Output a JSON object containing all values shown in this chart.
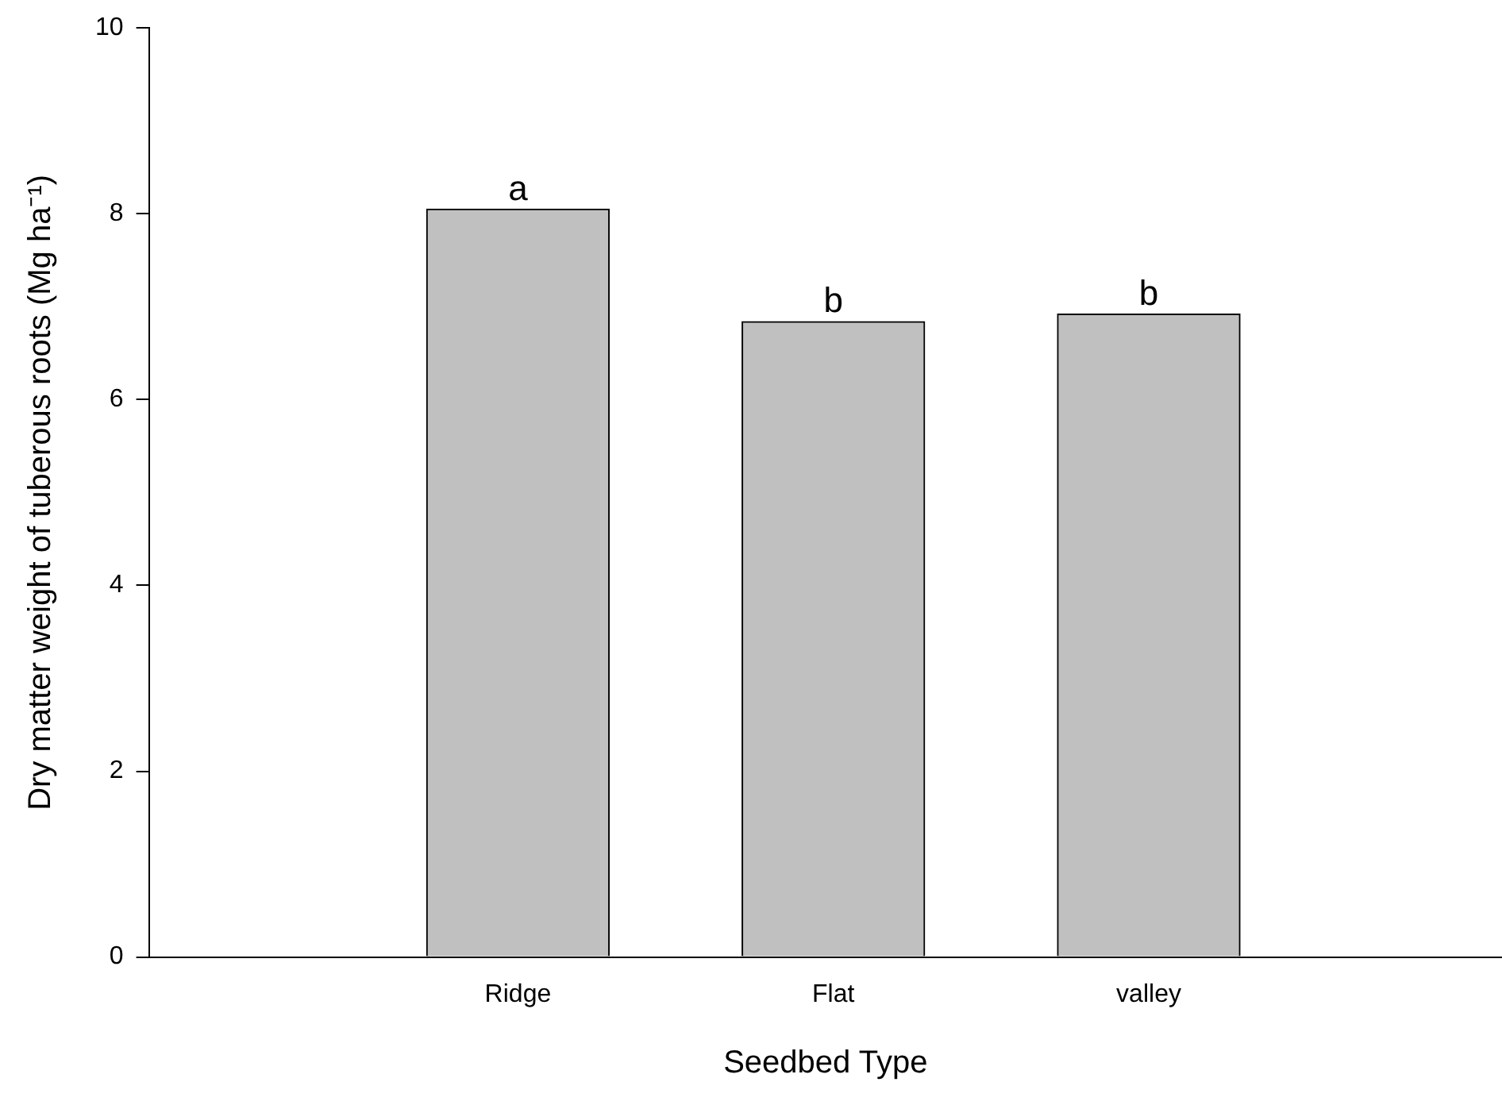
{
  "chart_data": {
    "type": "bar",
    "xlabel": "Seedbed Type",
    "ylabel": "Dry matter weight of tuberous roots (Mg ha⁻¹)",
    "categories": [
      "Ridge",
      "Flat",
      "valley"
    ],
    "values": [
      8.05,
      6.84,
      6.92
    ],
    "color": "#c0c0c0",
    "ylim": [
      0,
      10
    ],
    "yticks": [
      0,
      2,
      4,
      6,
      8,
      10
    ],
    "grid": false,
    "legend": false,
    "annotations": [
      {
        "text": "a",
        "x": "Ridge",
        "y": 8.05
      },
      {
        "text": "b",
        "x": "Flat",
        "y": 6.84
      },
      {
        "text": "b",
        "x": "valley",
        "y": 6.92
      }
    ]
  }
}
